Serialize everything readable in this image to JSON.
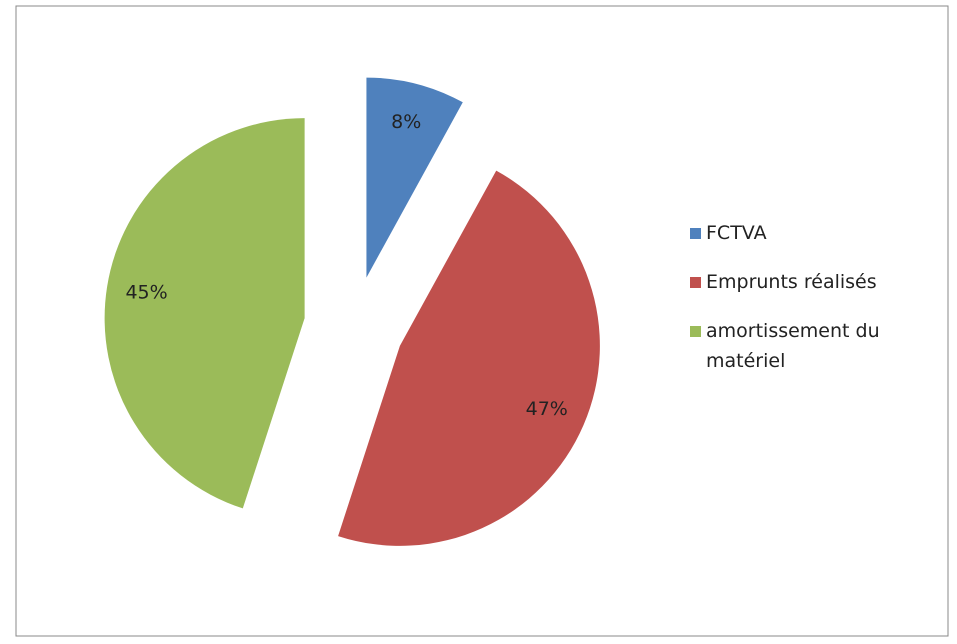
{
  "chart_data": {
    "type": "pie",
    "exploded": true,
    "categories": [
      "FCTVA",
      "Emprunts réalisés",
      "amortissement du matériel"
    ],
    "values": [
      8,
      47,
      45
    ],
    "value_labels": [
      "8%",
      "47%",
      "45%"
    ],
    "colors": [
      "#4f81bd",
      "#c0504d",
      "#9bbb59"
    ],
    "legend": "right"
  }
}
